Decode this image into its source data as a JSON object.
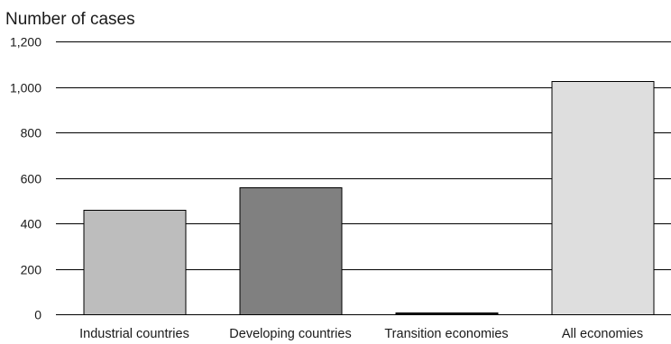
{
  "chart_data": {
    "type": "bar",
    "title": "",
    "xlabel": "",
    "ylabel": "Number of cases",
    "ylim": [
      0,
      1200
    ],
    "yticks": [
      0,
      200,
      400,
      600,
      800,
      1000,
      1200
    ],
    "ytick_labels": [
      "0",
      "200",
      "400",
      "600",
      "800",
      "1,000",
      "1,200"
    ],
    "grid": true,
    "categories": [
      "Industrial countries",
      "Developing countries",
      "Transition economies",
      "All economies"
    ],
    "values": [
      460,
      557,
      7,
      1027
    ],
    "colors": [
      "#bdbdbd",
      "#808080",
      "#1f1f1f",
      "#dedede"
    ]
  }
}
